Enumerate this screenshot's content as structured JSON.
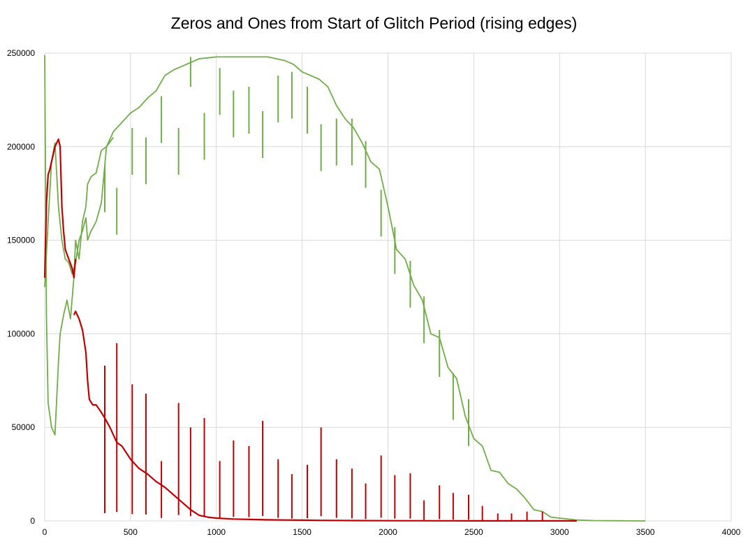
{
  "chart_data": {
    "type": "line",
    "title": "Zeros and Ones from Start of Glitch Period (rising edges)",
    "xlabel": "",
    "ylabel": "",
    "xlim": [
      0,
      4000
    ],
    "ylim": [
      0,
      250000
    ],
    "x_ticks": [
      "0",
      "500",
      "1000",
      "1500",
      "2000",
      "2500",
      "3000",
      "3500",
      "4000"
    ],
    "y_ticks": [
      "0",
      "50000",
      "100000",
      "150000",
      "200000",
      "250000"
    ],
    "grid": true,
    "legend": "none",
    "series": [
      {
        "color": "#70ad47",
        "x": [
          0,
          10,
          20,
          40,
          60,
          80,
          90,
          110,
          130,
          150,
          170,
          180,
          200,
          220,
          240,
          250,
          270,
          300,
          330,
          360,
          400,
          450,
          500,
          550,
          600,
          650,
          700,
          750,
          800,
          850,
          900,
          950,
          1000,
          1050,
          1100,
          1150,
          1200,
          1250,
          1300,
          1350,
          1400,
          1450,
          1500,
          1550,
          1600,
          1650,
          1700,
          1750,
          1800,
          1850,
          1900,
          1950,
          2000,
          2050,
          2100,
          2150,
          2200,
          2250,
          2300,
          2350,
          2400,
          2450,
          2500,
          2550,
          2600,
          2650,
          2700,
          2750,
          2800,
          2850,
          2900,
          2950,
          3000,
          3050,
          3100,
          3200,
          3300,
          3400,
          3500
        ],
        "values": [
          249000,
          110000,
          63000,
          50000,
          46000,
          85000,
          100000,
          110000,
          118000,
          108000,
          130000,
          150000,
          140000,
          160000,
          168000,
          180000,
          184000,
          186000,
          198000,
          200000,
          208000,
          213000,
          218000,
          221000,
          226000,
          230000,
          238000,
          241000,
          243000,
          245000,
          247000,
          247500,
          248000,
          248000,
          248000,
          248000,
          248000,
          248000,
          248000,
          247000,
          246000,
          244000,
          240000,
          238000,
          236000,
          232000,
          222000,
          215000,
          210000,
          202000,
          192000,
          188000,
          168000,
          145000,
          140000,
          126000,
          118000,
          100000,
          98000,
          82000,
          76000,
          56000,
          44000,
          40000,
          27000,
          26000,
          20000,
          17000,
          12000,
          6000,
          5000,
          2000,
          1500,
          1000,
          500,
          200,
          100,
          50,
          0
        ]
      },
      {
        "color": "#70ad47",
        "x": [
          0,
          20,
          40,
          60,
          80,
          100,
          120,
          140,
          160,
          180,
          200,
          220,
          240,
          250,
          270,
          300,
          330,
          360,
          400
        ],
        "values": [
          125000,
          160000,
          192000,
          202000,
          168000,
          150000,
          140000,
          138000,
          132000,
          138000,
          150000,
          155000,
          162000,
          150000,
          155000,
          160000,
          170000,
          200000,
          205000
        ]
      },
      {
        "color": "#c00000",
        "x": [
          0,
          10,
          20,
          30,
          40,
          50,
          60,
          70,
          80,
          90,
          100,
          110,
          120,
          140,
          160,
          170,
          180
        ],
        "values": [
          130000,
          170000,
          185000,
          188000,
          192000,
          196000,
          200000,
          202000,
          204000,
          200000,
          168000,
          155000,
          145000,
          140000,
          135000,
          130000,
          140000
        ]
      },
      {
        "color": "#c00000",
        "x": [
          170,
          180,
          200,
          220,
          240,
          250,
          260,
          280,
          300,
          330,
          350,
          380,
          400,
          420,
          450,
          500,
          550,
          600,
          650,
          700,
          750,
          800,
          850,
          900,
          950,
          1000,
          1100,
          1200,
          1300,
          1400,
          1500,
          1600,
          1800,
          2000,
          2500,
          3000,
          3100
        ],
        "values": [
          110000,
          112000,
          108000,
          102000,
          90000,
          75000,
          65000,
          62000,
          62000,
          58000,
          55000,
          50000,
          46000,
          42000,
          40000,
          33000,
          28000,
          25000,
          21000,
          18000,
          14000,
          10000,
          6000,
          3000,
          2000,
          1500,
          1000,
          800,
          600,
          500,
          400,
          300,
          200,
          100,
          50,
          20,
          0
        ]
      }
    ],
    "spikes": [
      {
        "color": "#c00000",
        "x": [
          350,
          420,
          510,
          590,
          680,
          780,
          850,
          930,
          1020,
          1100,
          1190,
          1270,
          1360,
          1440,
          1530,
          1610,
          1700,
          1790,
          1870,
          1960,
          2040,
          2130,
          2210,
          2300,
          2380,
          2470,
          2550,
          2640,
          2720,
          2810,
          2900
        ],
        "values": [
          83000,
          95000,
          73000,
          68000,
          32000,
          63000,
          50000,
          55000,
          32000,
          43000,
          40000,
          53500,
          33000,
          25000,
          30000,
          50000,
          33000,
          28000,
          20000,
          35000,
          24500,
          25500,
          11000,
          19000,
          15000,
          14000,
          8000,
          4000,
          4000,
          5000,
          5000
        ]
      },
      {
        "color": "#70ad47",
        "x": [
          350,
          420,
          510,
          590,
          680,
          780,
          850,
          930,
          1020,
          1100,
          1190,
          1270,
          1360,
          1440,
          1530,
          1610,
          1700,
          1790,
          1870,
          1960,
          2040,
          2130,
          2210,
          2300,
          2380,
          2470
        ],
        "values": [
          165000,
          153000,
          185000,
          180000,
          202000,
          185000,
          232000,
          193000,
          217000,
          205000,
          207000,
          194000,
          213000,
          215000,
          207000,
          187000,
          190000,
          190000,
          178000,
          152000,
          132000,
          114000,
          95000,
          77000,
          54000,
          40000
        ]
      }
    ]
  }
}
